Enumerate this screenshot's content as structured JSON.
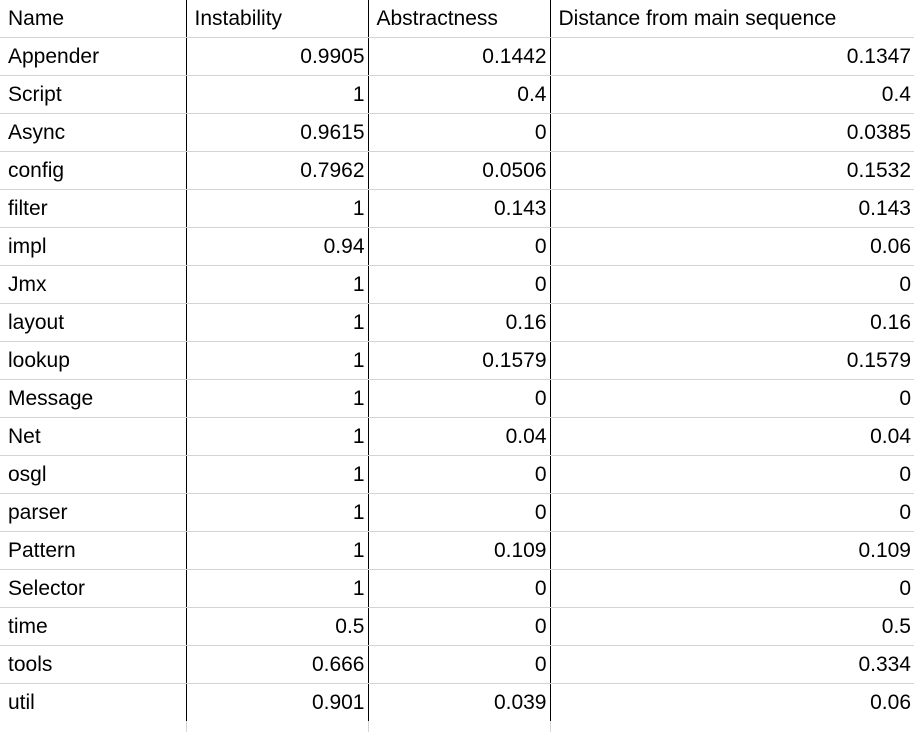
{
  "table": {
    "headers": [
      "Name",
      "Instability",
      "Abstractness",
      "Distance from main sequence"
    ],
    "rows": [
      [
        "Appender",
        "0.9905",
        "0.1442",
        "0.1347"
      ],
      [
        "Script",
        "1",
        "0.4",
        "0.4"
      ],
      [
        "Async",
        "0.9615",
        "0",
        "0.0385"
      ],
      [
        "config",
        "0.7962",
        "0.0506",
        "0.1532"
      ],
      [
        "filter",
        "1",
        "0.143",
        "0.143"
      ],
      [
        "impl",
        "0.94",
        "0",
        "0.06"
      ],
      [
        "Jmx",
        "1",
        "0",
        "0"
      ],
      [
        "layout",
        "1",
        "0.16",
        "0.16"
      ],
      [
        "lookup",
        "1",
        "0.1579",
        "0.1579"
      ],
      [
        "Message",
        "1",
        "0",
        "0"
      ],
      [
        "Net",
        "1",
        "0.04",
        "0.04"
      ],
      [
        "osgl",
        "1",
        "0",
        "0"
      ],
      [
        "parser",
        "1",
        "0",
        "0"
      ],
      [
        "Pattern",
        "1",
        "0.109",
        "0.109"
      ],
      [
        "Selector",
        "1",
        "0",
        "0"
      ],
      [
        "time",
        "0.5",
        "0",
        "0.5"
      ],
      [
        "tools",
        "0.666",
        "0",
        "0.334"
      ],
      [
        "util",
        "0.901",
        "0.039",
        "0.06"
      ]
    ]
  }
}
